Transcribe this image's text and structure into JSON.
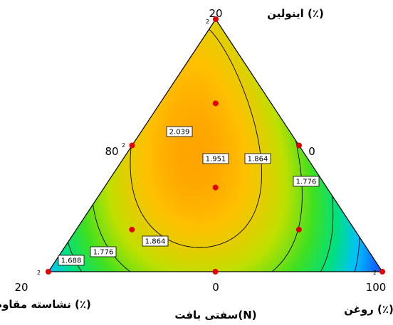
{
  "chart_data": {
    "type": "ternary-contour",
    "response_label": "سفتی بافت(N)",
    "components": [
      {
        "name": "اینولین (٪)",
        "vertex": "top",
        "ticks": [
          "20",
          "0"
        ]
      },
      {
        "name": "نشاسته مقاوم (٪)",
        "vertex": "bottom-left",
        "ticks": [
          "80",
          "20"
        ]
      },
      {
        "name": "روغن (٪)",
        "vertex": "bottom-right",
        "ticks": [
          "100",
          "0"
        ]
      }
    ],
    "contour_levels": [
      1.688,
      1.776,
      1.864,
      1.951,
      2.039
    ],
    "contour_labels": [
      {
        "text": "2.039"
      },
      {
        "text": "1.951"
      },
      {
        "text": "1.864"
      },
      {
        "text": "1.776"
      },
      {
        "text": "1.864"
      },
      {
        "text": "1.776"
      },
      {
        "text": "1.688"
      }
    ],
    "replicate_marks": [
      "2",
      "2",
      "2",
      "2"
    ],
    "design_points": 10,
    "colormap": [
      "#1060ff",
      "#00c0ff",
      "#00e080",
      "#40e020",
      "#c0e000",
      "#ffc000",
      "#ff8000",
      "#ff2000"
    ]
  }
}
